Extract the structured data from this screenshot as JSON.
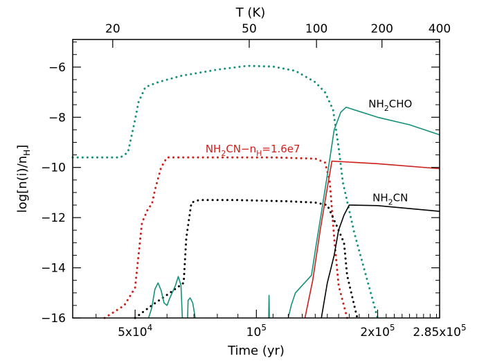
{
  "chart_data": {
    "type": "line",
    "title": "",
    "xlabel": "Time (yr)",
    "ylabel": "log[n(i)/nH]",
    "ylabel_parts": {
      "prefix": "log[n(i)/n",
      "sub": "H",
      "suffix": "]"
    },
    "top_axis_label": "T (K)",
    "xlim": [
      35000,
      285000
    ],
    "x_scale": "log",
    "ylim": [
      -16,
      -4.9
    ],
    "grid": false,
    "x_ticks": [
      {
        "value": 50000,
        "label_base": "5x10",
        "label_exp": "4"
      },
      {
        "value": 100000,
        "label_base": "10",
        "label_exp": "5"
      },
      {
        "value": 200000,
        "label_base": "2x10",
        "label_exp": "5"
      },
      {
        "value": 285000,
        "label_base": "2.85x10",
        "label_exp": "5"
      }
    ],
    "y_ticks": [
      -16,
      -14,
      -12,
      -10,
      -8,
      -6
    ],
    "top_ticks": [
      {
        "time": 44000,
        "label": "20"
      },
      {
        "time": 96000,
        "label": "50"
      },
      {
        "time": 141000,
        "label": "100"
      },
      {
        "time": 205000,
        "label": "200"
      },
      {
        "time": 285000,
        "label": "400"
      }
    ],
    "annotations": [
      {
        "name": "nh2cho-label",
        "parts": [
          "NH",
          "2",
          "CHO"
        ],
        "x": 215000,
        "y": -7.6,
        "color": "#000000"
      },
      {
        "name": "nh2cn-label",
        "parts": [
          "NH",
          "2",
          "CN"
        ],
        "x": 215000,
        "y": -11.35,
        "color": "#000000"
      },
      {
        "name": "nh2cn-high-density-label",
        "parts": [
          "NH",
          "2",
          "CN−n",
          "H",
          "=1.6e7"
        ],
        "x": 98000,
        "y": -9.4,
        "color": "#cc1f1a"
      }
    ],
    "series": [
      {
        "color": "#14907a",
        "style": "dotted",
        "points": [
          [
            35000,
            -9.6
          ],
          [
            46000,
            -9.6
          ],
          [
            48000,
            -9.4
          ],
          [
            50000,
            -8.1
          ],
          [
            51000,
            -7.4
          ],
          [
            53000,
            -6.8
          ],
          [
            57000,
            -6.6
          ],
          [
            65000,
            -6.35
          ],
          [
            80000,
            -6.1
          ],
          [
            95000,
            -5.95
          ],
          [
            110000,
            -5.98
          ],
          [
            125000,
            -6.15
          ],
          [
            140000,
            -6.6
          ],
          [
            148000,
            -7.0
          ],
          [
            155000,
            -7.7
          ],
          [
            160000,
            -9.2
          ],
          [
            164000,
            -10.6
          ],
          [
            175000,
            -12.6
          ],
          [
            190000,
            -14.7
          ],
          [
            200000,
            -16.0
          ]
        ]
      },
      {
        "color": "#cc1f1a",
        "style": "dotted",
        "points": [
          [
            42000,
            -16.0
          ],
          [
            47000,
            -15.5
          ],
          [
            50000,
            -14.8
          ],
          [
            52000,
            -12.2
          ],
          [
            54000,
            -11.6
          ],
          [
            55000,
            -11.5
          ],
          [
            56000,
            -10.9
          ],
          [
            58000,
            -10.0
          ],
          [
            60000,
            -9.6
          ],
          [
            80000,
            -9.6
          ],
          [
            110000,
            -9.6
          ],
          [
            140000,
            -9.65
          ],
          [
            148000,
            -9.8
          ],
          [
            152000,
            -10.5
          ],
          [
            156000,
            -12.8
          ],
          [
            160000,
            -14.7
          ],
          [
            168000,
            -16.0
          ]
        ]
      },
      {
        "color": "#000000",
        "style": "dotted",
        "points": [
          [
            50000,
            -16.0
          ],
          [
            55000,
            -15.5
          ],
          [
            61000,
            -15.0
          ],
          [
            66000,
            -14.6
          ],
          [
            67000,
            -12.8
          ],
          [
            69000,
            -11.4
          ],
          [
            72000,
            -11.3
          ],
          [
            90000,
            -11.3
          ],
          [
            120000,
            -11.35
          ],
          [
            140000,
            -11.4
          ],
          [
            150000,
            -11.5
          ],
          [
            158000,
            -12.3
          ],
          [
            165000,
            -13.0
          ],
          [
            168000,
            -14.3
          ],
          [
            172000,
            -15.0
          ],
          [
            178000,
            -16.0
          ]
        ]
      },
      {
        "color": "#14907a",
        "style": "solid",
        "points": [
          [
            54000,
            -16.0
          ],
          [
            55000,
            -15.6
          ],
          [
            56000,
            -14.85
          ],
          [
            57000,
            -14.6
          ],
          [
            58000,
            -14.9
          ],
          [
            59000,
            -15.4
          ],
          [
            60000,
            -15.5
          ],
          [
            61000,
            -15.2
          ],
          [
            63000,
            -14.7
          ],
          [
            64000,
            -14.35
          ],
          [
            65000,
            -14.7
          ],
          [
            65500,
            -16.0
          ]
        ]
      },
      {
        "color": "#14907a",
        "style": "solid",
        "points": [
          [
            67500,
            -16.0
          ],
          [
            67700,
            -15.3
          ],
          [
            68500,
            -15.2
          ],
          [
            69500,
            -15.4
          ],
          [
            70500,
            -16.0
          ]
        ]
      },
      {
        "color": "#14907a",
        "style": "solid",
        "points": [
          [
            107300,
            -16.0
          ],
          [
            107500,
            -15.1
          ],
          [
            107700,
            -16.0
          ]
        ]
      },
      {
        "color": "#14907a",
        "style": "solid",
        "points": [
          [
            120000,
            -16.0
          ],
          [
            122000,
            -15.5
          ],
          [
            125000,
            -15.0
          ],
          [
            130000,
            -14.7
          ],
          [
            137000,
            -14.3
          ],
          [
            141000,
            -13.0
          ],
          [
            146000,
            -11.5
          ],
          [
            151000,
            -10.0
          ],
          [
            156000,
            -8.5
          ],
          [
            162000,
            -7.8
          ],
          [
            167000,
            -7.6
          ],
          [
            200000,
            -8.0
          ],
          [
            240000,
            -8.3
          ],
          [
            285000,
            -8.7
          ]
        ]
      },
      {
        "color": "#cc1f1a",
        "style": "solid",
        "points": [
          [
            132000,
            -16.0
          ],
          [
            138000,
            -14.5
          ],
          [
            144000,
            -12.5
          ],
          [
            150000,
            -10.8
          ],
          [
            154000,
            -9.75
          ],
          [
            200000,
            -9.85
          ],
          [
            285000,
            -10.05
          ]
        ]
      },
      {
        "color": "#000000",
        "style": "solid",
        "points": [
          [
            145000,
            -16.0
          ],
          [
            150000,
            -14.6
          ],
          [
            156000,
            -13.5
          ],
          [
            160000,
            -12.5
          ],
          [
            165000,
            -11.9
          ],
          [
            170000,
            -11.5
          ],
          [
            200000,
            -11.52
          ],
          [
            285000,
            -11.75
          ]
        ]
      }
    ]
  }
}
